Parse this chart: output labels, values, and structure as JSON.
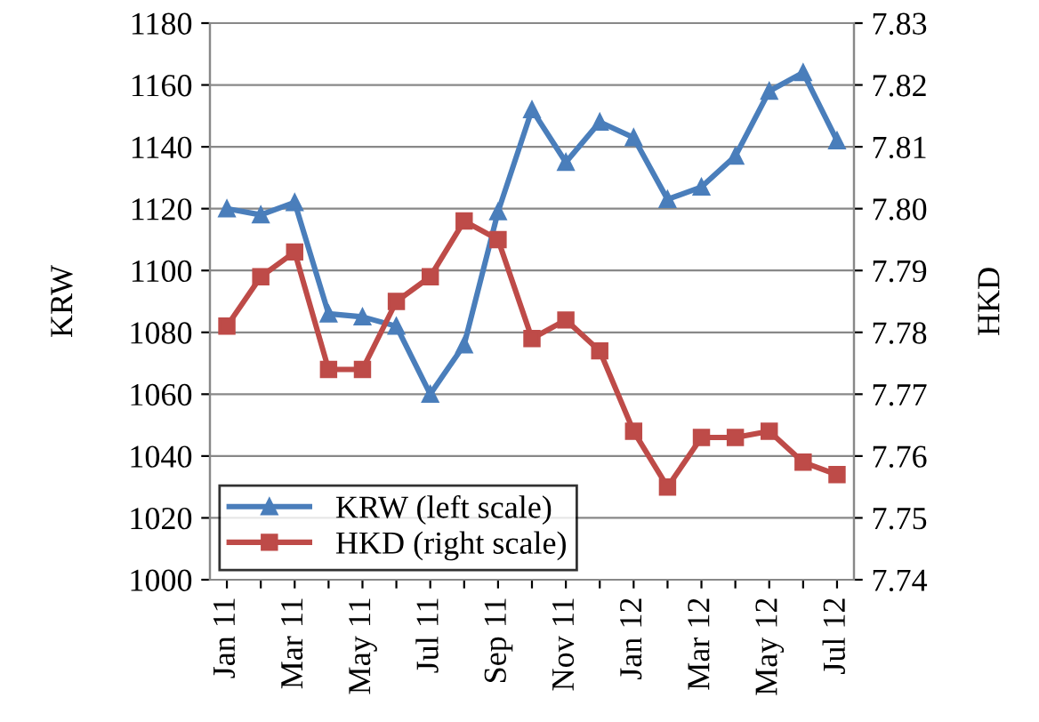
{
  "chart_data": {
    "type": "line",
    "categories": [
      "Jan 11",
      null,
      "Mar 11",
      null,
      "May 11",
      null,
      "Jul 11",
      null,
      "Sep 11",
      null,
      "Nov 11",
      null,
      "Jan 12",
      null,
      "Mar 12",
      null,
      "May 12",
      null,
      "Jul 12"
    ],
    "ylabel": "KRW",
    "y2label": "HKD",
    "series": [
      {
        "name": "KRW (left scale)",
        "color": "#4a7ebb",
        "marker": "triangle",
        "values": [
          1120,
          1118,
          1122,
          1086,
          1085,
          1082,
          1060,
          1076,
          1119,
          1152,
          1135,
          1148,
          1143,
          1123,
          1127,
          1137,
          1158,
          1164,
          1142
        ]
      },
      {
        "name": "HKD (right scale)",
        "color": "#be4b48",
        "marker": "square",
        "axis": "y2",
        "values": [
          7.781,
          7.789,
          7.793,
          7.774,
          7.774,
          7.785,
          7.789,
          7.798,
          7.795,
          7.779,
          7.782,
          7.777,
          7.764,
          7.755,
          7.763,
          7.763,
          7.764,
          7.759,
          7.757
        ]
      }
    ],
    "ylim": [
      1000,
      1180
    ],
    "yticks": [
      1000,
      1020,
      1040,
      1060,
      1080,
      1100,
      1120,
      1140,
      1160,
      1180
    ],
    "y2lim": [
      7.74,
      7.83
    ],
    "y2ticks": [
      {
        "value": 7.74,
        "label": "7.74"
      },
      {
        "value": 7.75,
        "label": "7.75"
      },
      {
        "value": 7.76,
        "label": "7.76"
      },
      {
        "value": 7.77,
        "label": "7.77"
      },
      {
        "value": 7.78,
        "label": "7.78"
      },
      {
        "value": 7.79,
        "label": "7.79"
      },
      {
        "value": 7.8,
        "label": "7.80"
      },
      {
        "value": 7.81,
        "label": "7.81"
      },
      {
        "value": 7.82,
        "label": "7.82"
      },
      {
        "value": 7.83,
        "label": "7.83"
      }
    ],
    "grid": "y",
    "legend": "bottom left",
    "line_style": "solid"
  }
}
